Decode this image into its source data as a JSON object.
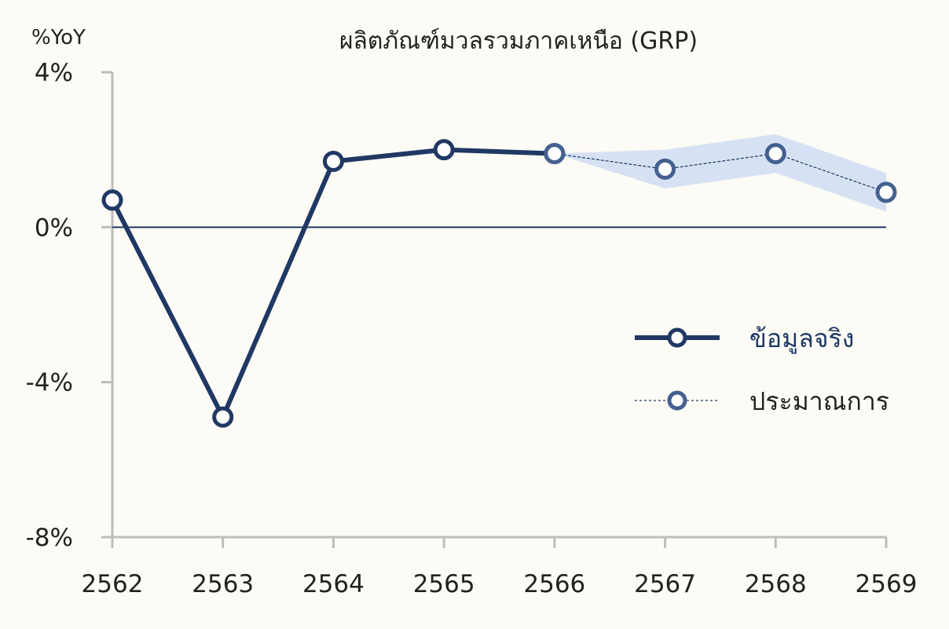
{
  "chart_data": {
    "type": "line",
    "title": "ผลิตภัณฑ์มวลรวมภาคเหนือ (GRP)",
    "y_unit_label": "%YoY",
    "xlabel": "",
    "ylabel": "",
    "categories": [
      "2562",
      "2563",
      "2564",
      "2565",
      "2566",
      "2567",
      "2568",
      "2569"
    ],
    "ylim": [
      -8,
      4
    ],
    "yticks": [
      4,
      0,
      -4,
      -8
    ],
    "ytick_labels": [
      "4%",
      "0%",
      "-4%",
      "-8%"
    ],
    "zero_line": true,
    "grid": false,
    "legend_position": "right",
    "series": [
      {
        "name": "ข้อมูลจริง",
        "style": "solid",
        "color": "#1f3864",
        "x": [
          "2562",
          "2563",
          "2564",
          "2565",
          "2566"
        ],
        "values": [
          0.7,
          -4.9,
          1.7,
          2.0,
          1.9
        ]
      },
      {
        "name": "ประมาณการ",
        "style": "dashed",
        "color": "#1f3864",
        "marker_color": "#44608f",
        "x": [
          "2566",
          "2567",
          "2568",
          "2569"
        ],
        "values": [
          1.9,
          1.5,
          1.9,
          0.9
        ],
        "band_low": [
          1.9,
          1.0,
          1.4,
          0.4
        ],
        "band_high": [
          1.9,
          2.0,
          2.4,
          1.4
        ],
        "band_color": "#d6e2f3"
      }
    ]
  }
}
